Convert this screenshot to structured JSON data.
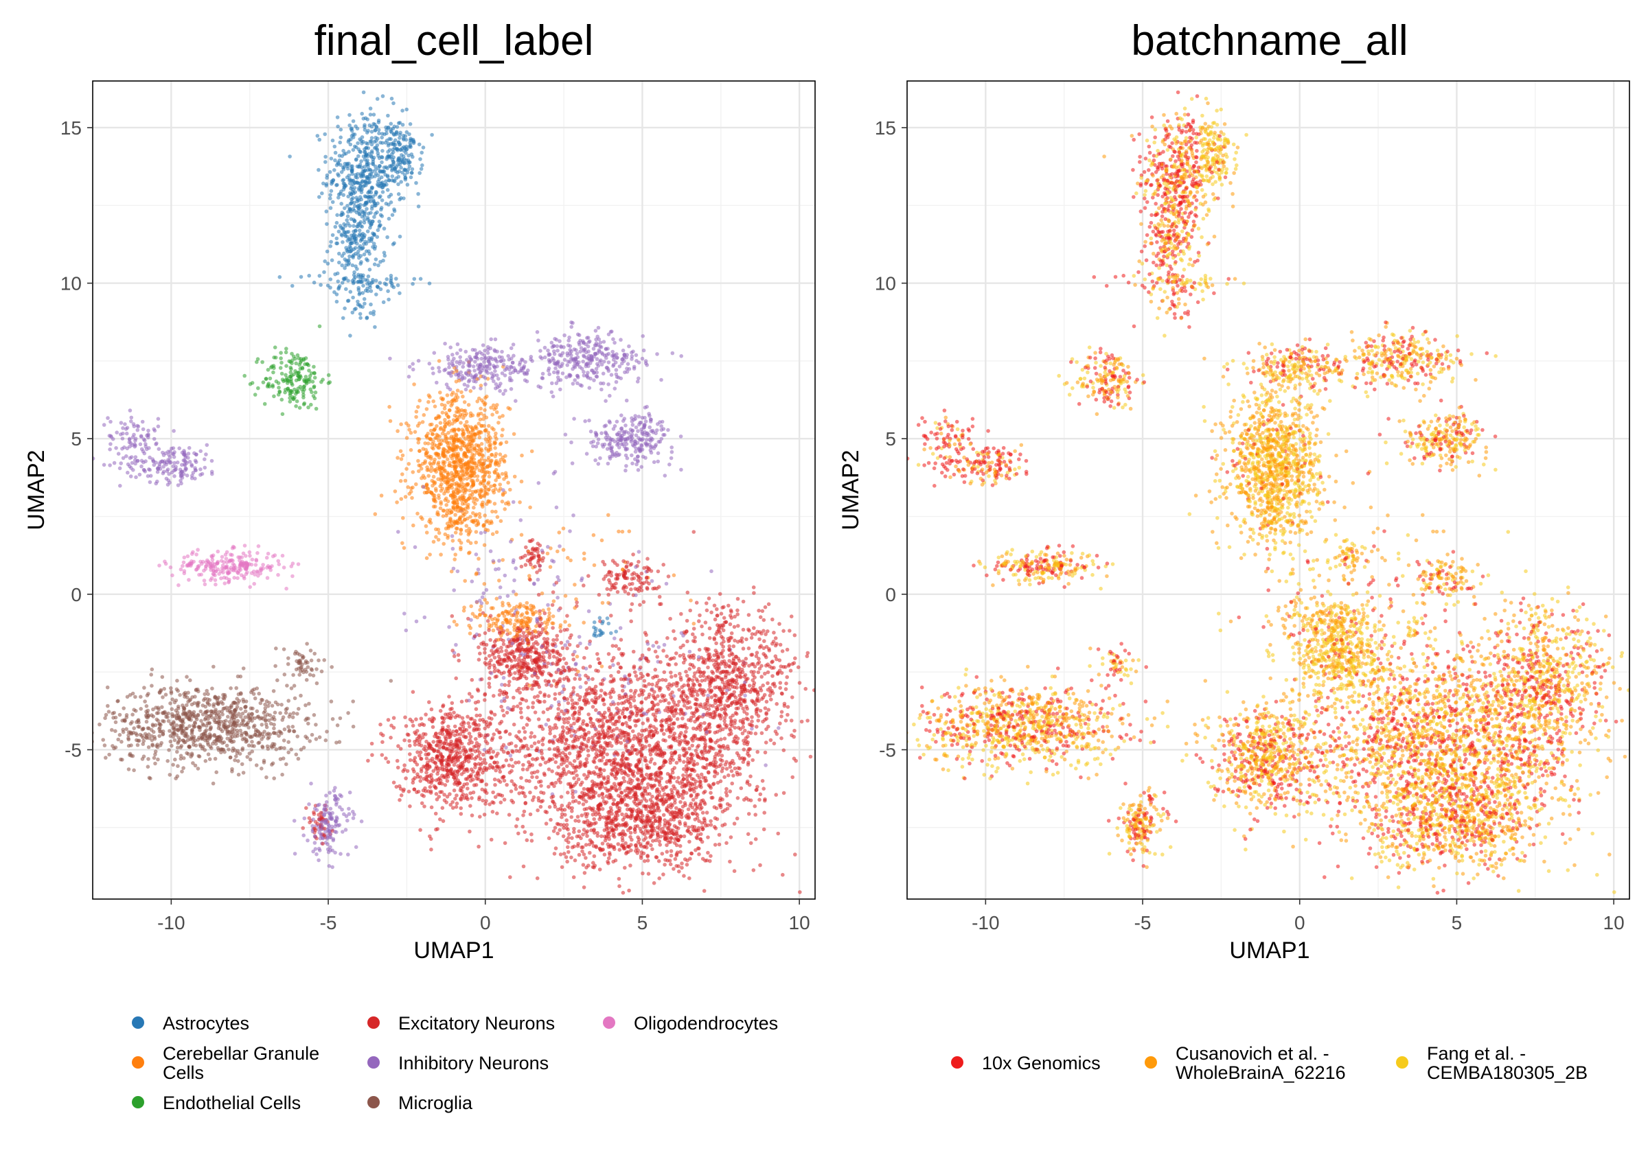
{
  "chart_data": [
    {
      "type": "scatter",
      "title": "final_cell_label",
      "xlabel": "UMAP1",
      "ylabel": "UMAP2",
      "xlim": [
        -12.5,
        10.5
      ],
      "ylim": [
        -9.8,
        16.5
      ],
      "xticks": [
        -10,
        -5,
        0,
        5,
        10
      ],
      "yticks": [
        -5,
        0,
        5,
        10,
        15
      ],
      "xtick_labels": [
        "-10",
        "-5",
        "0",
        "5",
        "10"
      ],
      "ytick_labels": [
        "-5",
        "0",
        "5",
        "10",
        "15"
      ],
      "grid": true,
      "legend_position": "bottom",
      "legend": [
        {
          "label": "Astrocytes",
          "color": "#2878b5"
        },
        {
          "label": "Cerebellar Granule Cells",
          "color": "#ff7f0e"
        },
        {
          "label": "Endothelial Cells",
          "color": "#2ca02c"
        },
        {
          "label": "Excitatory Neurons",
          "color": "#d62728"
        },
        {
          "label": "Inhibitory Neurons",
          "color": "#9467bd"
        },
        {
          "label": "Microglia",
          "color": "#8c564b"
        },
        {
          "label": "Oligodendrocytes",
          "color": "#e377c2"
        }
      ],
      "clusters": [
        {
          "series": "Astrocytes",
          "x": -3.8,
          "y": 13.6,
          "sx": 0.6,
          "sy": 1.0,
          "n": 450
        },
        {
          "series": "Astrocytes",
          "x": -2.6,
          "y": 14.1,
          "sx": 0.3,
          "sy": 0.5,
          "n": 120
        },
        {
          "series": "Astrocytes",
          "x": -4.1,
          "y": 11.4,
          "sx": 0.4,
          "sy": 0.8,
          "n": 220
        },
        {
          "series": "Astrocytes",
          "x": -4.0,
          "y": 10.0,
          "sx": 1.0,
          "sy": 0.2,
          "n": 70
        },
        {
          "series": "Astrocytes",
          "x": -3.9,
          "y": 9.2,
          "sx": 0.3,
          "sy": 0.3,
          "n": 25
        },
        {
          "series": "Endothelial Cells",
          "x": -6.1,
          "y": 6.9,
          "sx": 0.5,
          "sy": 0.5,
          "n": 170
        },
        {
          "series": "Inhibitory Neurons",
          "x": -10.0,
          "y": 4.2,
          "sx": 0.8,
          "sy": 0.3,
          "n": 160
        },
        {
          "series": "Inhibitory Neurons",
          "x": -11.2,
          "y": 5.1,
          "sx": 0.4,
          "sy": 0.35,
          "n": 70
        },
        {
          "series": "Oligodendrocytes",
          "x": -8.2,
          "y": 0.9,
          "sx": 0.9,
          "sy": 0.25,
          "n": 220
        },
        {
          "series": "Microglia",
          "x": -8.8,
          "y": -4.2,
          "sx": 1.6,
          "sy": 0.65,
          "n": 850
        },
        {
          "series": "Microglia",
          "x": -5.8,
          "y": -2.3,
          "sx": 0.4,
          "sy": 0.35,
          "n": 50
        },
        {
          "series": "Inhibitory Neurons",
          "x": -5.0,
          "y": -7.4,
          "sx": 0.35,
          "sy": 0.55,
          "n": 140
        },
        {
          "series": "Excitatory Neurons",
          "x": -5.3,
          "y": -7.4,
          "sx": 0.2,
          "sy": 0.3,
          "n": 40
        },
        {
          "series": "Inhibitory Neurons",
          "x": 0.0,
          "y": 7.3,
          "sx": 1.1,
          "sy": 0.35,
          "n": 230
        },
        {
          "series": "Cerebellar Granule Cells",
          "x": -0.8,
          "y": 4.2,
          "sx": 0.75,
          "sy": 1.1,
          "n": 950
        },
        {
          "series": "Cerebellar Granule Cells",
          "x": -0.8,
          "y": 2.6,
          "sx": 0.4,
          "sy": 0.5,
          "n": 80
        },
        {
          "series": "Inhibitory Neurons",
          "x": 3.3,
          "y": 7.5,
          "sx": 0.9,
          "sy": 0.45,
          "n": 280
        },
        {
          "series": "Inhibitory Neurons",
          "x": 4.6,
          "y": 5.0,
          "sx": 0.7,
          "sy": 0.4,
          "n": 230
        },
        {
          "series": "Excitatory Neurons",
          "x": 1.6,
          "y": 1.3,
          "sx": 0.2,
          "sy": 0.3,
          "n": 45
        },
        {
          "series": "Excitatory Neurons",
          "x": 4.6,
          "y": 0.5,
          "sx": 0.5,
          "sy": 0.3,
          "n": 110
        },
        {
          "series": "Excitatory Neurons",
          "x": 1.2,
          "y": -2.0,
          "sx": 0.7,
          "sy": 0.6,
          "n": 380
        },
        {
          "series": "Cerebellar Granule Cells",
          "x": 1.0,
          "y": -0.8,
          "sx": 0.7,
          "sy": 0.35,
          "n": 150
        },
        {
          "series": "Excitatory Neurons",
          "x": -1.1,
          "y": -5.2,
          "sx": 0.9,
          "sy": 0.85,
          "n": 650
        },
        {
          "series": "Excitatory Neurons",
          "x": 4.6,
          "y": -5.0,
          "sx": 2.0,
          "sy": 1.6,
          "n": 1900
        },
        {
          "series": "Excitatory Neurons",
          "x": 7.8,
          "y": -3.0,
          "sx": 1.0,
          "sy": 1.3,
          "n": 700
        },
        {
          "series": "Excitatory Neurons",
          "x": 5.0,
          "y": -7.4,
          "sx": 1.3,
          "sy": 0.7,
          "n": 550
        },
        {
          "series": "Inhibitory Neurons",
          "x": 4.0,
          "y": -2.8,
          "sx": 2.2,
          "sy": 1.8,
          "n": 110
        },
        {
          "series": "Astrocytes",
          "x": 3.8,
          "y": -1.2,
          "sx": 0.3,
          "sy": 0.2,
          "n": 20
        },
        {
          "series": "Inhibitory Neurons",
          "x": 0.5,
          "y": 0.5,
          "sx": 1.5,
          "sy": 1.8,
          "n": 90
        },
        {
          "series": "Cerebellar Granule Cells",
          "x": 2.5,
          "y": 0.0,
          "sx": 1.8,
          "sy": 1.2,
          "n": 60
        }
      ]
    },
    {
      "type": "scatter",
      "title": "batchname_all",
      "xlabel": "UMAP1",
      "ylabel": "UMAP2",
      "xlim": [
        -12.5,
        10.5
      ],
      "ylim": [
        -9.8,
        16.5
      ],
      "xticks": [
        -10,
        -5,
        0,
        5,
        10
      ],
      "yticks": [
        -5,
        0,
        5,
        10,
        15
      ],
      "xtick_labels": [
        "-10",
        "-5",
        "0",
        "5",
        "10"
      ],
      "ytick_labels": [
        "-5",
        "0",
        "5",
        "10",
        "15"
      ],
      "grid": true,
      "legend_position": "bottom",
      "legend": [
        {
          "label": "10x Genomics",
          "color": "#ee1c1c"
        },
        {
          "label": "Cusanovich et al. - WholeBrainA_62216",
          "color": "#ff9a0a"
        },
        {
          "label": "Fang et al. - CEMBA180305_2B",
          "color": "#f6cb1c"
        }
      ],
      "batch_mix": "same embedding as left panel; points colored by batch of origin"
    }
  ]
}
